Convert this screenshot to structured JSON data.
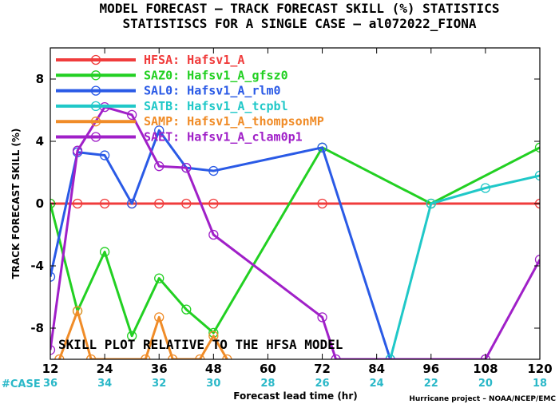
{
  "title_line1": "MODEL FORECAST – TRACK FORECAST SKILL (%) STATISTICS",
  "title_line2": "STATISTISCS FOR A SINGLE CASE – al072022_FIONA",
  "annotation": "SKILL PLOT RELATIVE TO THE HFSA MODEL",
  "credit": "Hurricane project – NOAA/NCEP/EMC",
  "case_label": "#CASE",
  "chart_data": {
    "type": "line",
    "title": "MODEL FORECAST – TRACK FORECAST SKILL (%) STATISTICS",
    "subtitle": "STATISTISCS FOR A SINGLE CASE – al072022_FIONA",
    "xlabel": "Forecast lead time (hr)",
    "ylabel": "TRACK FORECAST SKILL (%)",
    "xlim": [
      12,
      120
    ],
    "ylim": [
      -10,
      10
    ],
    "xticks": [
      12,
      24,
      36,
      48,
      60,
      72,
      84,
      96,
      108,
      120
    ],
    "yticks": [
      8,
      4,
      0,
      -4,
      -8
    ],
    "grid": false,
    "legend_position": "top-left",
    "case_counts": {
      "x": [
        12,
        24,
        36,
        48,
        60,
        72,
        84,
        96,
        108,
        120
      ],
      "values": [
        36,
        34,
        32,
        30,
        28,
        26,
        24,
        22,
        20,
        18
      ]
    },
    "series": [
      {
        "name": "HFSA: Hafsv1_A",
        "color": "#f03c3c",
        "x": [
          12,
          18,
          24,
          30,
          36,
          42,
          48,
          72,
          96,
          120
        ],
        "y": [
          0,
          0,
          0,
          0,
          0,
          0,
          0,
          0,
          0,
          0
        ]
      },
      {
        "name": "SAZ0: Hafsv1_A_gfsz0",
        "color": "#22d022",
        "x": [
          12,
          18,
          24,
          30,
          36,
          42,
          48,
          72,
          96,
          120
        ],
        "y": [
          0,
          -6.9,
          -3.1,
          -8.5,
          -4.8,
          -6.8,
          -8.3,
          3.6,
          0,
          3.6
        ]
      },
      {
        "name": "SAL0: Hafsv1_A_rlm0",
        "color": "#2a5ae6",
        "x": [
          12,
          18,
          24,
          30,
          36,
          42,
          48,
          72,
          87
        ],
        "y": [
          -4.7,
          3.3,
          3.1,
          0,
          4.7,
          2.3,
          2.1,
          3.6,
          -10
        ]
      },
      {
        "name": "SATB: Hafsv1_A_tcpbl",
        "color": "#20c8c8",
        "x": [
          87,
          96,
          108,
          120
        ],
        "y": [
          -10,
          0,
          1.0,
          1.8
        ]
      },
      {
        "name": "SAMP: Hafsv1_A_thompsonMP",
        "color": "#f08c28",
        "x": [
          14,
          18,
          21,
          33,
          36,
          39,
          45,
          48,
          51
        ],
        "y": [
          -10,
          -6.9,
          -10,
          -10,
          -7.3,
          -10,
          -10,
          -8.5,
          -10
        ]
      },
      {
        "name": "SAET: Hafsv1_A_clam0p1",
        "color": "#a020c8",
        "x": [
          12,
          18,
          24,
          30,
          36,
          42,
          48,
          72,
          75,
          108,
          120
        ],
        "y": [
          -9.4,
          3.4,
          6.2,
          5.7,
          2.4,
          2.3,
          -2.0,
          -7.3,
          -10,
          -10,
          -3.6
        ]
      }
    ]
  }
}
